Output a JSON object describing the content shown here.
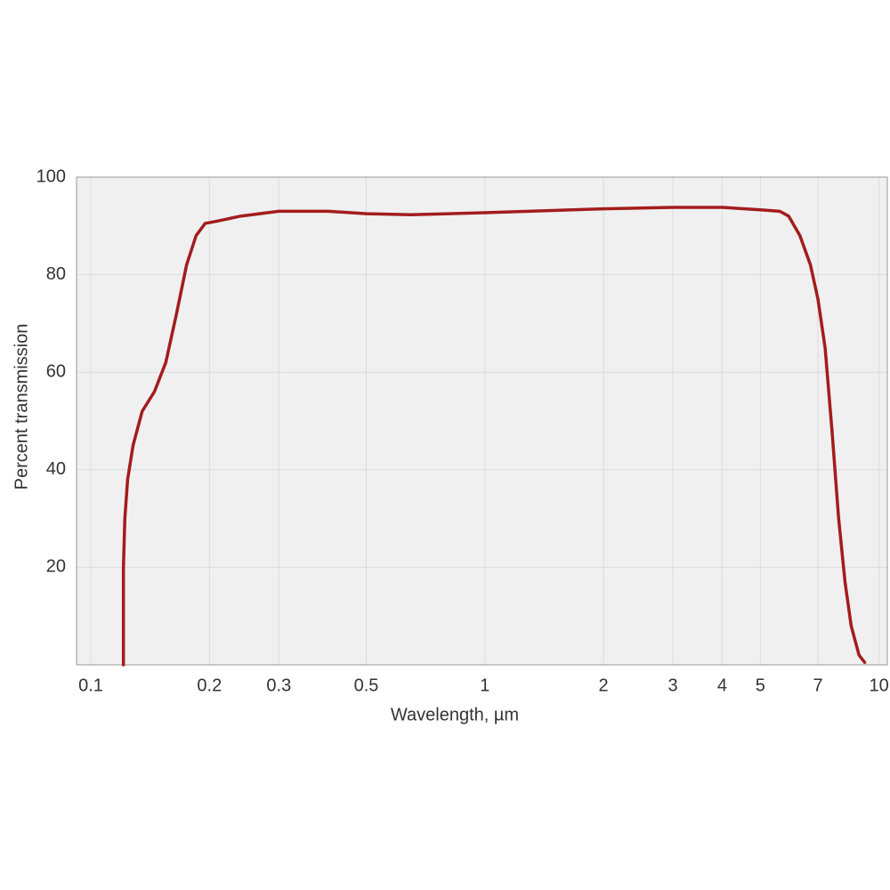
{
  "chart_data": {
    "type": "line",
    "x_label": "Wavelength, µm",
    "y_label": "Percent transmission",
    "x_scale": "log",
    "grid": true,
    "xlim": [
      0.092,
      10.5
    ],
    "ylim": [
      0,
      100
    ],
    "xticks": [
      0.1,
      0.2,
      0.3,
      0.5,
      1,
      2,
      3,
      4,
      5,
      7,
      10
    ],
    "yticks": [
      20,
      40,
      60,
      80,
      100
    ],
    "series": [
      {
        "color": "#a31c1c",
        "x": [
          0.121,
          0.121,
          0.122,
          0.124,
          0.128,
          0.135,
          0.145,
          0.155,
          0.165,
          0.175,
          0.185,
          0.195,
          0.21,
          0.24,
          0.3,
          0.4,
          0.5,
          0.65,
          1,
          2,
          3,
          4,
          5,
          5.6,
          5.9,
          6.3,
          6.7,
          7.0,
          7.3,
          7.6,
          7.9,
          8.2,
          8.5,
          8.9,
          9.2
        ],
        "values": [
          0,
          20,
          30,
          38,
          45,
          52,
          56,
          62,
          72,
          82,
          88,
          90.5,
          91,
          92,
          93,
          93,
          92.5,
          92.3,
          92.7,
          93.5,
          93.8,
          93.8,
          93.3,
          93,
          92,
          88,
          82,
          75,
          65,
          48,
          30,
          17,
          8,
          2,
          0.5
        ]
      }
    ]
  }
}
